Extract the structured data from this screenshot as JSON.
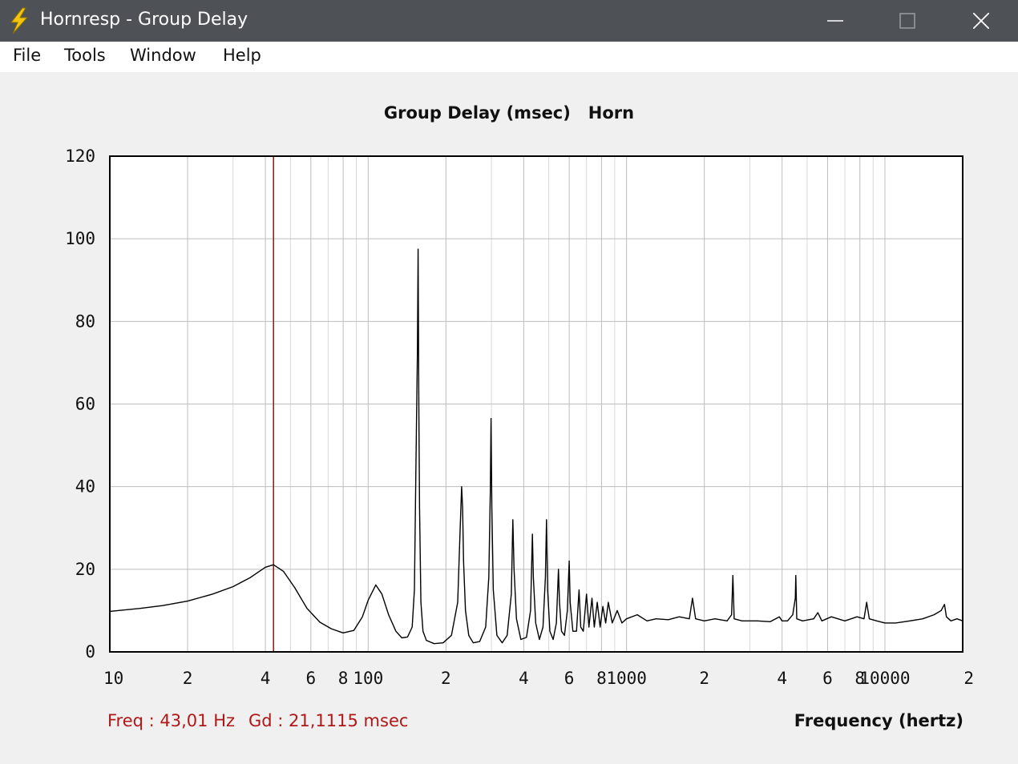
{
  "window": {
    "title": "Hornresp - Group Delay",
    "icon": "lightning-icon",
    "controls": [
      "minimize-icon",
      "maximize-icon",
      "close-icon"
    ]
  },
  "menu": {
    "items": [
      {
        "label": "File"
      },
      {
        "label": "Tools"
      },
      {
        "label": "Window"
      },
      {
        "label": "Help"
      }
    ]
  },
  "readout": {
    "freq": "Freq : 43,01 Hz",
    "gd": "Gd : 21,1115 msec"
  },
  "colors": {
    "titlebar": "#4e5257",
    "curve": "#000000",
    "cursor": "#8b1a10",
    "readout": "#b01818",
    "grid": "#c0c0c0"
  },
  "chart_data": {
    "type": "line",
    "title": "Group Delay (msec)   Horn",
    "xlabel": "Frequency (hertz)",
    "ylabel": "",
    "xscale": "log",
    "xlim": [
      10,
      20000
    ],
    "ylim": [
      0,
      120
    ],
    "yticks": [
      0,
      20,
      40,
      60,
      80,
      100,
      120
    ],
    "xtick_labels": [
      {
        "x": 10,
        "label": "10"
      },
      {
        "x": 20,
        "label": "2"
      },
      {
        "x": 40,
        "label": "4"
      },
      {
        "x": 60,
        "label": "6"
      },
      {
        "x": 80,
        "label": "8"
      },
      {
        "x": 100,
        "label": "100"
      },
      {
        "x": 200,
        "label": "2"
      },
      {
        "x": 400,
        "label": "4"
      },
      {
        "x": 600,
        "label": "6"
      },
      {
        "x": 800,
        "label": "8"
      },
      {
        "x": 1000,
        "label": "1000"
      },
      {
        "x": 2000,
        "label": "2"
      },
      {
        "x": 4000,
        "label": "4"
      },
      {
        "x": 6000,
        "label": "6"
      },
      {
        "x": 8000,
        "label": "8"
      },
      {
        "x": 10000,
        "label": "10000"
      },
      {
        "x": 20000,
        "label": "2"
      }
    ],
    "grid": true,
    "cursor_x": 43.01,
    "series": [
      {
        "points": [
          [
            10,
            9.8
          ],
          [
            13,
            10.5
          ],
          [
            16,
            11.2
          ],
          [
            20,
            12.3
          ],
          [
            25,
            14
          ],
          [
            30,
            15.8
          ],
          [
            35,
            18
          ],
          [
            40,
            20.5
          ],
          [
            43,
            21.1
          ],
          [
            47,
            19.5
          ],
          [
            52,
            15.5
          ],
          [
            58,
            10.5
          ],
          [
            65,
            7.2
          ],
          [
            72,
            5.6
          ],
          [
            80,
            4.6
          ],
          [
            88,
            5.2
          ],
          [
            95,
            8.5
          ],
          [
            100,
            12.5
          ],
          [
            107,
            16.2
          ],
          [
            113,
            14
          ],
          [
            120,
            9
          ],
          [
            128,
            5
          ],
          [
            135,
            3.4
          ],
          [
            142,
            3.6
          ],
          [
            148,
            6
          ],
          [
            151,
            15
          ],
          [
            153,
            45
          ],
          [
            155,
            72
          ],
          [
            156,
            97.5
          ],
          [
            157,
            60
          ],
          [
            158,
            35
          ],
          [
            160,
            12
          ],
          [
            163,
            5
          ],
          [
            168,
            2.8
          ],
          [
            180,
            2
          ],
          [
            195,
            2.2
          ],
          [
            210,
            4
          ],
          [
            222,
            12
          ],
          [
            227,
            30
          ],
          [
            230,
            40
          ],
          [
            232,
            35
          ],
          [
            234,
            22
          ],
          [
            238,
            10
          ],
          [
            245,
            4
          ],
          [
            255,
            2.2
          ],
          [
            270,
            2.5
          ],
          [
            285,
            6
          ],
          [
            293,
            18
          ],
          [
            297,
            39
          ],
          [
            299,
            56.5
          ],
          [
            301,
            35
          ],
          [
            305,
            15
          ],
          [
            315,
            4
          ],
          [
            330,
            2.2
          ],
          [
            345,
            4
          ],
          [
            358,
            14
          ],
          [
            363,
            32
          ],
          [
            367,
            20
          ],
          [
            375,
            8
          ],
          [
            390,
            3
          ],
          [
            410,
            3.5
          ],
          [
            425,
            10
          ],
          [
            432,
            28.5
          ],
          [
            436,
            18
          ],
          [
            445,
            7
          ],
          [
            460,
            3
          ],
          [
            475,
            6
          ],
          [
            485,
            18
          ],
          [
            490,
            32
          ],
          [
            495,
            15
          ],
          [
            505,
            5
          ],
          [
            520,
            3
          ],
          [
            535,
            7
          ],
          [
            545,
            20
          ],
          [
            550,
            12
          ],
          [
            560,
            5
          ],
          [
            575,
            4
          ],
          [
            590,
            10
          ],
          [
            600,
            22
          ],
          [
            605,
            12
          ],
          [
            620,
            5
          ],
          [
            640,
            5
          ],
          [
            655,
            15
          ],
          [
            665,
            6
          ],
          [
            680,
            5
          ],
          [
            700,
            14
          ],
          [
            715,
            6
          ],
          [
            735,
            13
          ],
          [
            750,
            6
          ],
          [
            770,
            12
          ],
          [
            790,
            6
          ],
          [
            810,
            11
          ],
          [
            830,
            7
          ],
          [
            850,
            12
          ],
          [
            880,
            7
          ],
          [
            920,
            10
          ],
          [
            960,
            7
          ],
          [
            1000,
            8
          ],
          [
            1100,
            9
          ],
          [
            1200,
            7.5
          ],
          [
            1300,
            8
          ],
          [
            1450,
            7.8
          ],
          [
            1600,
            8.5
          ],
          [
            1750,
            8
          ],
          [
            1800,
            13
          ],
          [
            1850,
            8
          ],
          [
            2000,
            7.5
          ],
          [
            2200,
            8
          ],
          [
            2450,
            7.5
          ],
          [
            2550,
            9
          ],
          [
            2580,
            18.5
          ],
          [
            2610,
            8
          ],
          [
            2800,
            7.5
          ],
          [
            3200,
            7.5
          ],
          [
            3600,
            7.3
          ],
          [
            3900,
            8.5
          ],
          [
            4000,
            7.5
          ],
          [
            4200,
            7.5
          ],
          [
            4400,
            9
          ],
          [
            4500,
            13
          ],
          [
            4520,
            18.5
          ],
          [
            4560,
            8
          ],
          [
            4800,
            7.5
          ],
          [
            5300,
            8
          ],
          [
            5500,
            9.5
          ],
          [
            5700,
            7.5
          ],
          [
            6200,
            8.5
          ],
          [
            7000,
            7.5
          ],
          [
            7800,
            8.5
          ],
          [
            8300,
            8
          ],
          [
            8500,
            12
          ],
          [
            8700,
            8
          ],
          [
            9300,
            7.5
          ],
          [
            10000,
            7
          ],
          [
            11000,
            7
          ],
          [
            12500,
            7.5
          ],
          [
            14000,
            8
          ],
          [
            15500,
            9
          ],
          [
            16500,
            10
          ],
          [
            17000,
            11.5
          ],
          [
            17300,
            8.5
          ],
          [
            18000,
            7.5
          ],
          [
            19000,
            8
          ],
          [
            20000,
            7.5
          ]
        ]
      }
    ]
  }
}
